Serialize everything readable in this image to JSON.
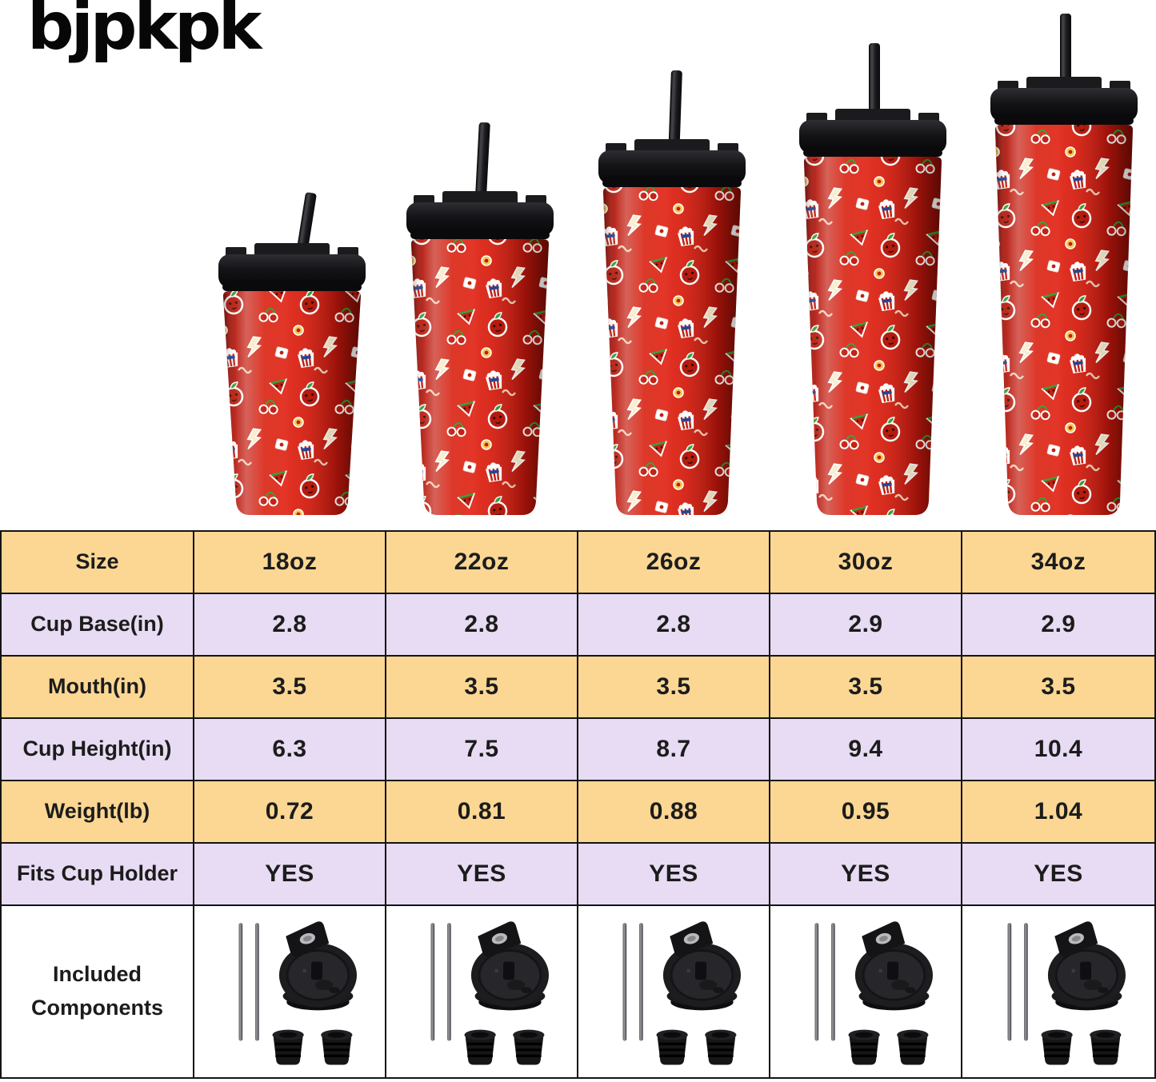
{
  "brand": {
    "logo_text": "bjpkpk"
  },
  "hero": {
    "description": "Five red insulated tumblers with cartoon fruit sticker pattern, black flip lids and black straws, arranged smallest to largest",
    "sizes": [
      "18oz",
      "22oz",
      "26oz",
      "30oz",
      "34oz"
    ],
    "colors": {
      "cup_red": "#d02114",
      "lid_black": "#161618",
      "straw_black": "#1b1b1e"
    }
  },
  "spec_table": {
    "header_row": {
      "label": "Size",
      "values": [
        "18oz",
        "22oz",
        "26oz",
        "30oz",
        "34oz"
      ]
    },
    "rows": [
      {
        "label": "Cup Base(in)",
        "values": [
          "2.8",
          "2.8",
          "2.8",
          "2.9",
          "2.9"
        ]
      },
      {
        "label": "Mouth(in)",
        "values": [
          "3.5",
          "3.5",
          "3.5",
          "3.5",
          "3.5"
        ]
      },
      {
        "label": "Cup Height(in)",
        "values": [
          "6.3",
          "7.5",
          "8.7",
          "9.4",
          "10.4"
        ]
      },
      {
        "label": "Weight(lb)",
        "values": [
          "0.72",
          "0.81",
          "0.88",
          "0.95",
          "1.04"
        ]
      },
      {
        "label": "Fits Cup Holder",
        "values": [
          "YES",
          "YES",
          "YES",
          "YES",
          "YES"
        ]
      }
    ],
    "components_row": {
      "label": "Included Components",
      "icons": [
        "metal-straws-icon",
        "flip-lid-icon",
        "straw-stoppers-icon"
      ]
    },
    "colors": {
      "row_yellow": "#fbd793",
      "row_lavender": "#e7dcf3",
      "border": "#141414"
    }
  }
}
